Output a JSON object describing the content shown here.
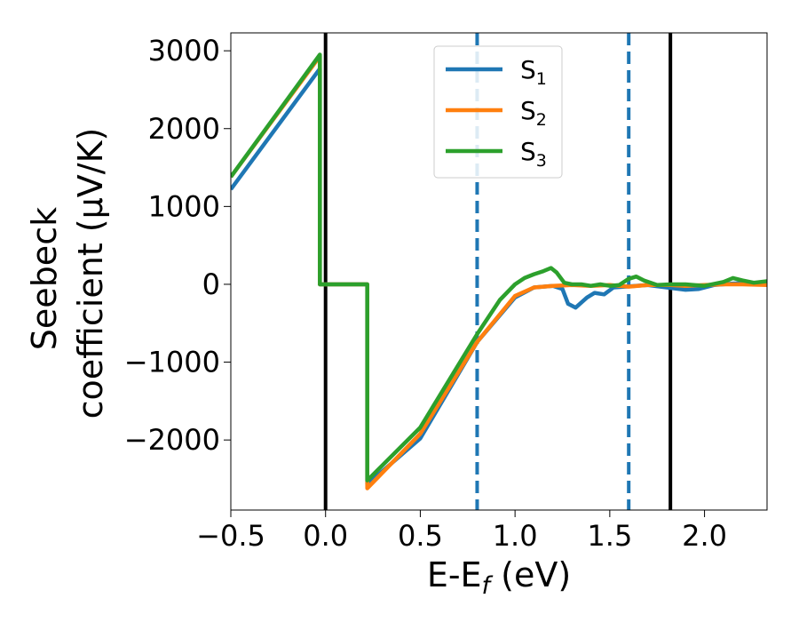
{
  "chart_data": {
    "type": "line",
    "title": "",
    "xlabel": "E-E",
    "xlabel_sub": "f",
    "xlabel_unit": " (eV)",
    "ylabel_line1": "Seebeck",
    "ylabel_line2": "coefficient  (μV/K)",
    "xlim": [
      -0.5,
      2.33
    ],
    "ylim": [
      -2900,
      3230
    ],
    "xticks": [
      -0.5,
      0.0,
      0.5,
      1.0,
      1.5,
      2.0
    ],
    "xtick_labels": [
      "−0.5",
      "0.0",
      "0.5",
      "1.0",
      "1.5",
      "2.0"
    ],
    "yticks": [
      -2000,
      -1000,
      0,
      1000,
      2000,
      3000
    ],
    "ytick_labels": [
      "−2000",
      "−1000",
      "0",
      "1000",
      "2000",
      "3000"
    ],
    "grid": false,
    "legend_position": "top-center",
    "vlines_solid": [
      0.0,
      1.82
    ],
    "vlines_dashed": [
      0.8,
      1.6
    ],
    "vline_solid_color": "#000000",
    "vline_dashed_color": "#1f77b4",
    "series": [
      {
        "name": "S",
        "sub": "1",
        "color": "#1f77b4",
        "points": [
          [
            -0.5,
            1220
          ],
          [
            -0.03,
            2770
          ],
          [
            -0.03,
            0
          ],
          [
            0.22,
            0
          ],
          [
            0.22,
            -2570
          ],
          [
            0.5,
            -1980
          ],
          [
            0.8,
            -740
          ],
          [
            1.0,
            -170
          ],
          [
            1.1,
            -40
          ],
          [
            1.2,
            -20
          ],
          [
            1.25,
            -60
          ],
          [
            1.28,
            -250
          ],
          [
            1.32,
            -300
          ],
          [
            1.38,
            -170
          ],
          [
            1.42,
            -110
          ],
          [
            1.47,
            -130
          ],
          [
            1.52,
            -40
          ],
          [
            1.58,
            -30
          ],
          [
            1.7,
            -10
          ],
          [
            1.8,
            -40
          ],
          [
            1.9,
            -70
          ],
          [
            1.97,
            -60
          ],
          [
            2.05,
            -10
          ],
          [
            2.15,
            10
          ],
          [
            2.25,
            20
          ],
          [
            2.33,
            20
          ]
        ]
      },
      {
        "name": "S",
        "sub": "2",
        "color": "#ff7f0e",
        "points": [
          [
            -0.5,
            1380
          ],
          [
            -0.03,
            2930
          ],
          [
            -0.03,
            0
          ],
          [
            0.22,
            0
          ],
          [
            0.22,
            -2620
          ],
          [
            0.5,
            -1920
          ],
          [
            0.8,
            -740
          ],
          [
            1.0,
            -150
          ],
          [
            1.1,
            -40
          ],
          [
            1.2,
            -20
          ],
          [
            1.3,
            -10
          ],
          [
            1.4,
            -20
          ],
          [
            1.5,
            -10
          ],
          [
            1.6,
            -30
          ],
          [
            1.7,
            -10
          ],
          [
            1.82,
            -10
          ],
          [
            1.9,
            -20
          ],
          [
            2.0,
            -10
          ],
          [
            2.1,
            0
          ],
          [
            2.2,
            0
          ],
          [
            2.33,
            -10
          ]
        ]
      },
      {
        "name": "S",
        "sub": "3",
        "color": "#2ca02c",
        "points": [
          [
            -0.5,
            1380
          ],
          [
            -0.03,
            2950
          ],
          [
            -0.03,
            0
          ],
          [
            0.22,
            0
          ],
          [
            0.22,
            -2520
          ],
          [
            0.5,
            -1840
          ],
          [
            0.8,
            -640
          ],
          [
            0.92,
            -200
          ],
          [
            1.0,
            0
          ],
          [
            1.05,
            80
          ],
          [
            1.1,
            130
          ],
          [
            1.15,
            170
          ],
          [
            1.19,
            210
          ],
          [
            1.22,
            150
          ],
          [
            1.26,
            20
          ],
          [
            1.3,
            0
          ],
          [
            1.35,
            0
          ],
          [
            1.4,
            -20
          ],
          [
            1.45,
            0
          ],
          [
            1.5,
            -20
          ],
          [
            1.55,
            -10
          ],
          [
            1.6,
            70
          ],
          [
            1.64,
            100
          ],
          [
            1.68,
            50
          ],
          [
            1.75,
            -10
          ],
          [
            1.82,
            0
          ],
          [
            1.9,
            0
          ],
          [
            2.0,
            -20
          ],
          [
            2.1,
            30
          ],
          [
            2.15,
            80
          ],
          [
            2.2,
            50
          ],
          [
            2.26,
            20
          ],
          [
            2.33,
            40
          ]
        ]
      }
    ]
  }
}
